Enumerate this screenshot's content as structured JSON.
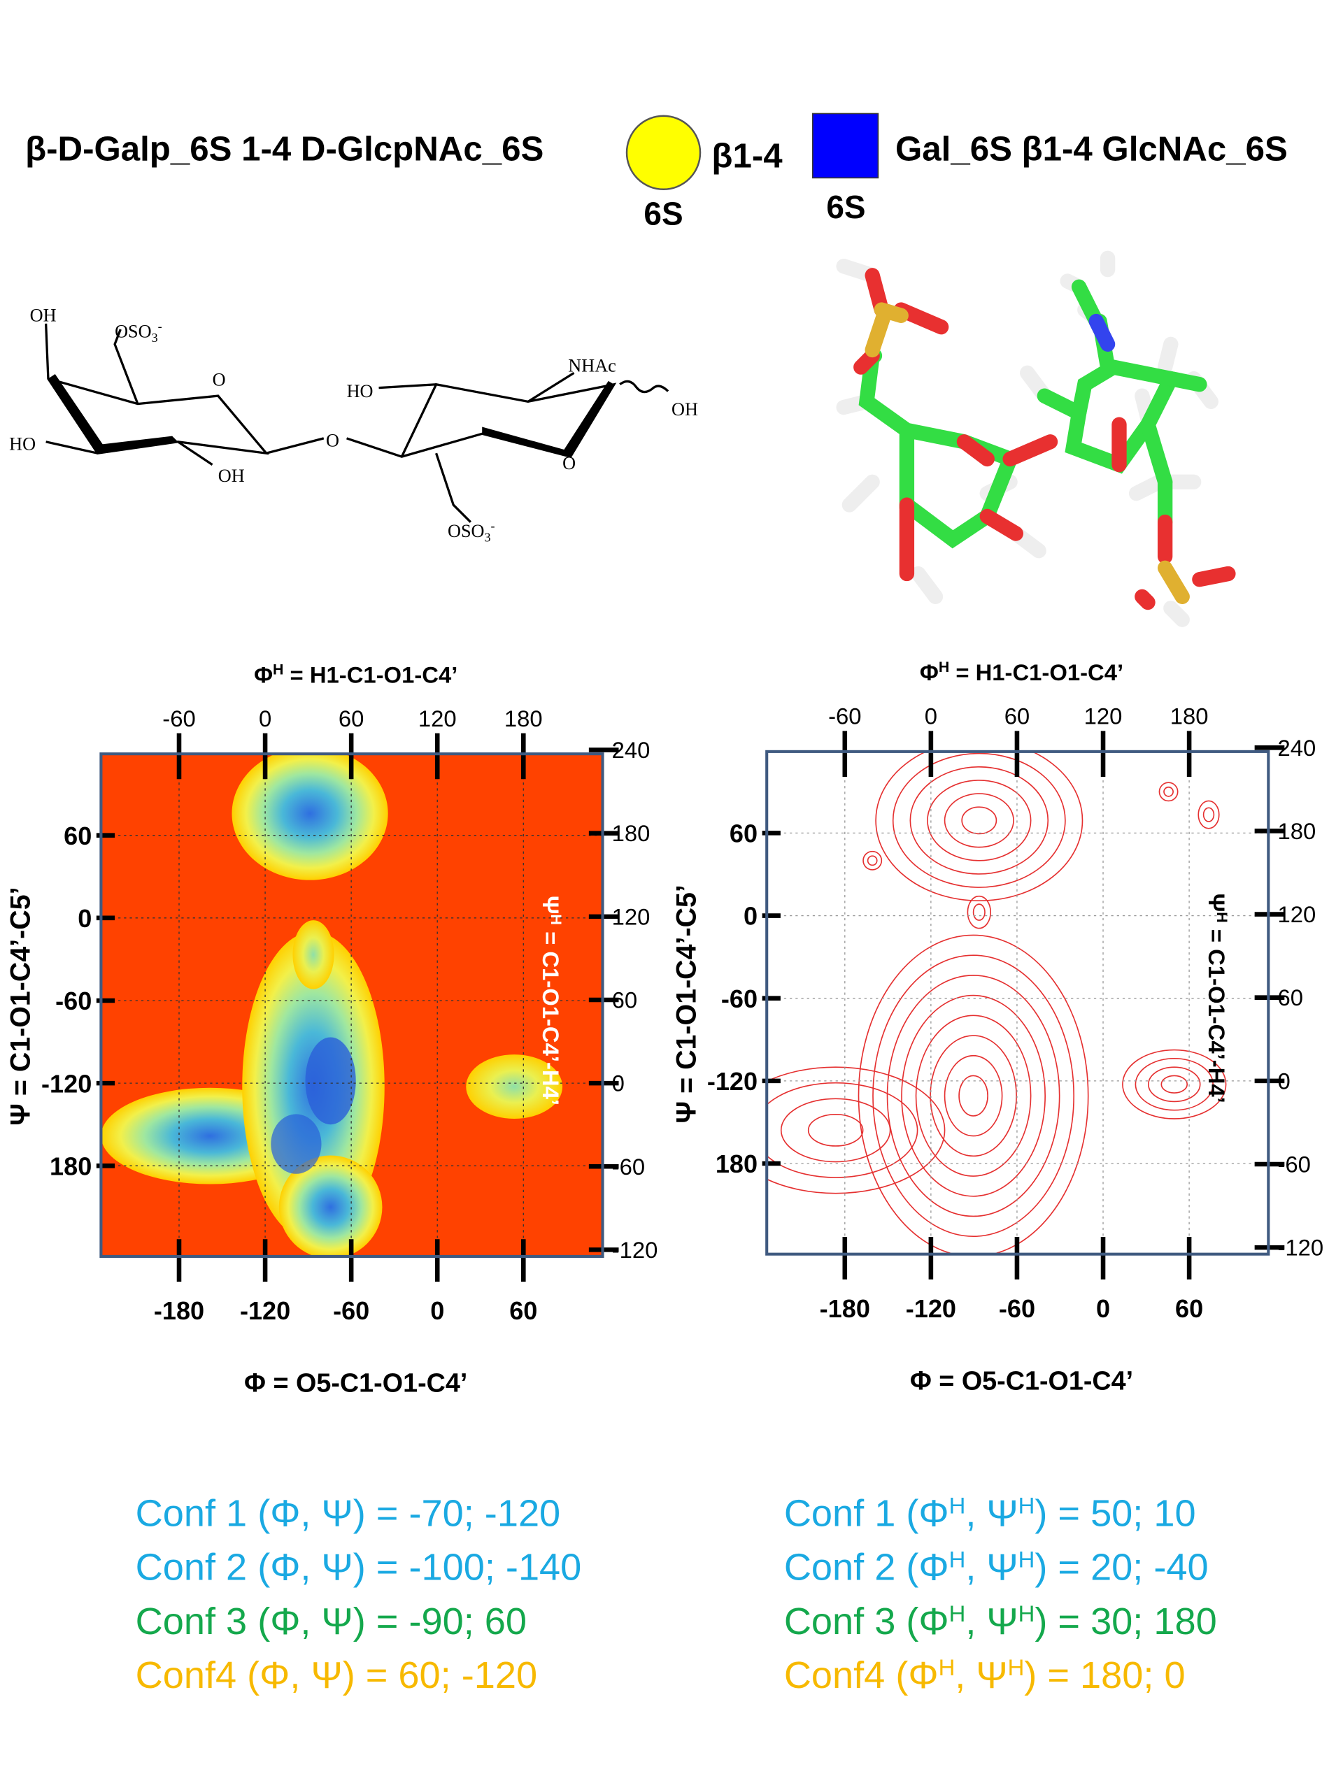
{
  "header": {
    "name": "β-D-Galp_6S 1-4 D-GlcpNAc_6S",
    "gal_mark": "6S",
    "linkage": "β1-4",
    "glc_mark": "6S",
    "short_name": "Gal_6S β1-4 GlcNAc_6S"
  },
  "structure": {
    "atoms": [
      "OH",
      "O",
      "HO",
      "OH",
      "O",
      "HO",
      "NHAc",
      "OH",
      "O"
    ],
    "sulfates": [
      {
        "base": "OSO",
        "sub": "3",
        "charge": "-"
      },
      {
        "base": "OSO",
        "sub": "3",
        "charge": "-"
      }
    ]
  },
  "plots": [
    {
      "kind": "heatmap",
      "top_label": [
        "Φ",
        "H",
        " = H1-C1-O1-C4’"
      ],
      "bottom_label": [
        "Φ = O5-C1-O1-C4’"
      ],
      "left_label": [
        "Ψ = C1-O1-C4’-C5’"
      ],
      "right_label": [
        "Ψ",
        "H",
        " = C1-O1-C4’-H4’"
      ],
      "top_ticks": [
        -60,
        0,
        60,
        120,
        180
      ],
      "bottom_ticks": [
        -180,
        -120,
        -60,
        0,
        60
      ],
      "left_ticks": [
        60,
        0,
        -60,
        -120,
        {
          "value": -180,
          "label": "180"
        }
      ],
      "right_ticks": [
        240,
        180,
        120,
        60,
        0,
        -60,
        -120
      ]
    },
    {
      "kind": "contour",
      "top_label": [
        "Φ",
        "H",
        " = H1-C1-O1-C4’"
      ],
      "bottom_label": [
        "Φ = O5-C1-O1-C4’"
      ],
      "left_label": [
        "Ψ = C1-O1-C4’-C5’"
      ],
      "right_label": [
        "Ψ",
        "H",
        " = C1-O1-C4’-H4’"
      ],
      "top_ticks": [
        -60,
        0,
        60,
        120,
        180
      ],
      "bottom_ticks": [
        -180,
        -120,
        -60,
        0,
        60
      ],
      "left_ticks": [
        60,
        0,
        -60,
        -120,
        {
          "value": -180,
          "label": "180"
        }
      ],
      "right_ticks": [
        240,
        180,
        120,
        60,
        0,
        -60,
        -120
      ]
    }
  ],
  "conformations": [
    {
      "color": "#1aa9e2",
      "left": [
        "Conf 1 (Φ, Ψ) =  -70; -120"
      ],
      "right": [
        "Conf 1 (Φ",
        "H",
        ", Ψ",
        "H",
        ") =  50; 10"
      ]
    },
    {
      "color": "#1aa9e2",
      "left": [
        "Conf 2 (Φ, Ψ) = -100; -140"
      ],
      "right": [
        "Conf 2 (Φ",
        "H",
        ", Ψ",
        "H",
        ") =  20; -40"
      ]
    },
    {
      "color": "#14a84c",
      "left": [
        "Conf 3 (Φ, Ψ) =  -90;  60"
      ],
      "right": [
        "Conf 3 (Φ",
        "H",
        ", Ψ",
        "H",
        ") =  30; 180"
      ]
    },
    {
      "color": "#f7b900",
      "left": [
        "Conf4 (Φ, Ψ) =    60; -120"
      ],
      "right": [
        "Conf4 (Φ",
        "H",
        ", Ψ",
        "H",
        ") =   180; 0"
      ]
    }
  ]
}
